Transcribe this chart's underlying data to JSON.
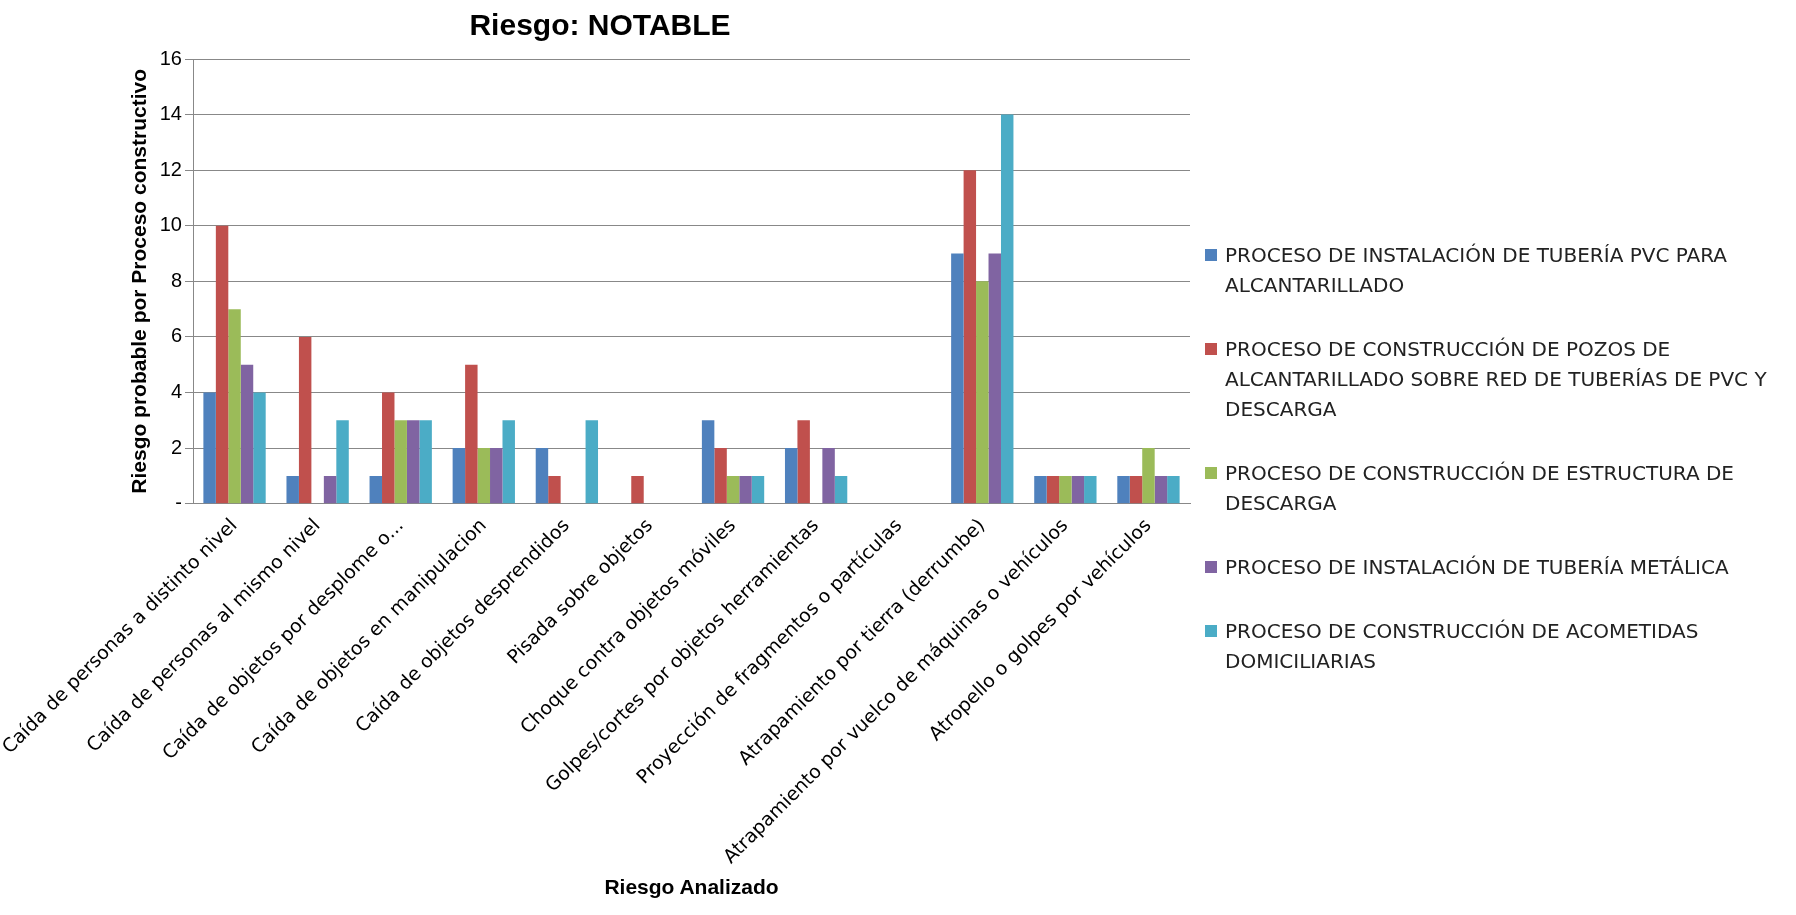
{
  "chart_data": {
    "type": "bar",
    "title": "Riesgo: NOTABLE",
    "xlabel": "Riesgo Analizado",
    "ylabel": "Riesgo probable por Proceso constructivo",
    "categories": [
      "Caída de personas a distinto nivel",
      "Caída de personas al mismo nivel",
      "Caída de objetos por desplome o...",
      "Caída de objetos en manipulacion",
      "Caída de objetos desprendidos",
      "Pisada sobre objetos",
      "Choque contra objetos móviles",
      "Golpes/cortes por objetos herramientas",
      "Proyección de fragmentos o partículas",
      "Atrapamiento por tierra (derrumbe)",
      "Atrapamiento por vuelco de máquinas o vehículos",
      "Atropello o golpes por vehículos"
    ],
    "series": [
      {
        "name": "PROCESO DE INSTALACIÓN DE TUBERÍA PVC PARA ALCANTARILLADO",
        "color": "#4f81bd",
        "values": [
          4,
          1,
          1,
          2,
          2,
          null,
          3,
          2,
          null,
          9,
          1,
          1
        ]
      },
      {
        "name": "PROCESO DE CONSTRUCCIÓN DE POZOS DE ALCANTARILLADO SOBRE RED DE TUBERÍAS DE PVC Y DESCARGA",
        "color": "#c0504d",
        "values": [
          10,
          6,
          4,
          5,
          1,
          1,
          2,
          3,
          null,
          12,
          1,
          1
        ]
      },
      {
        "name": "PROCESO DE CONSTRUCCIÓN DE ESTRUCTURA DE DESCARGA",
        "color": "#9bbb59",
        "values": [
          7,
          null,
          3,
          2,
          null,
          null,
          1,
          null,
          null,
          8,
          1,
          2
        ]
      },
      {
        "name": "PROCESO DE INSTALACIÓN DE TUBERÍA METÁLICA",
        "color": "#8064a2",
        "values": [
          5,
          1,
          3,
          2,
          null,
          null,
          1,
          2,
          null,
          9,
          1,
          1
        ]
      },
      {
        "name": "PROCESO DE CONSTRUCCIÓN DE ACOMETIDAS DOMICILIARIAS",
        "color": "#4bacc6",
        "values": [
          4,
          3,
          3,
          3,
          3,
          null,
          1,
          1,
          null,
          14,
          1,
          1
        ]
      }
    ],
    "ylim": [
      0,
      16
    ],
    "yticks": [
      {
        "value": 0,
        "label": "-"
      },
      2,
      4,
      6,
      8,
      10,
      12,
      14,
      16
    ],
    "grid": "y",
    "legend": "right"
  }
}
